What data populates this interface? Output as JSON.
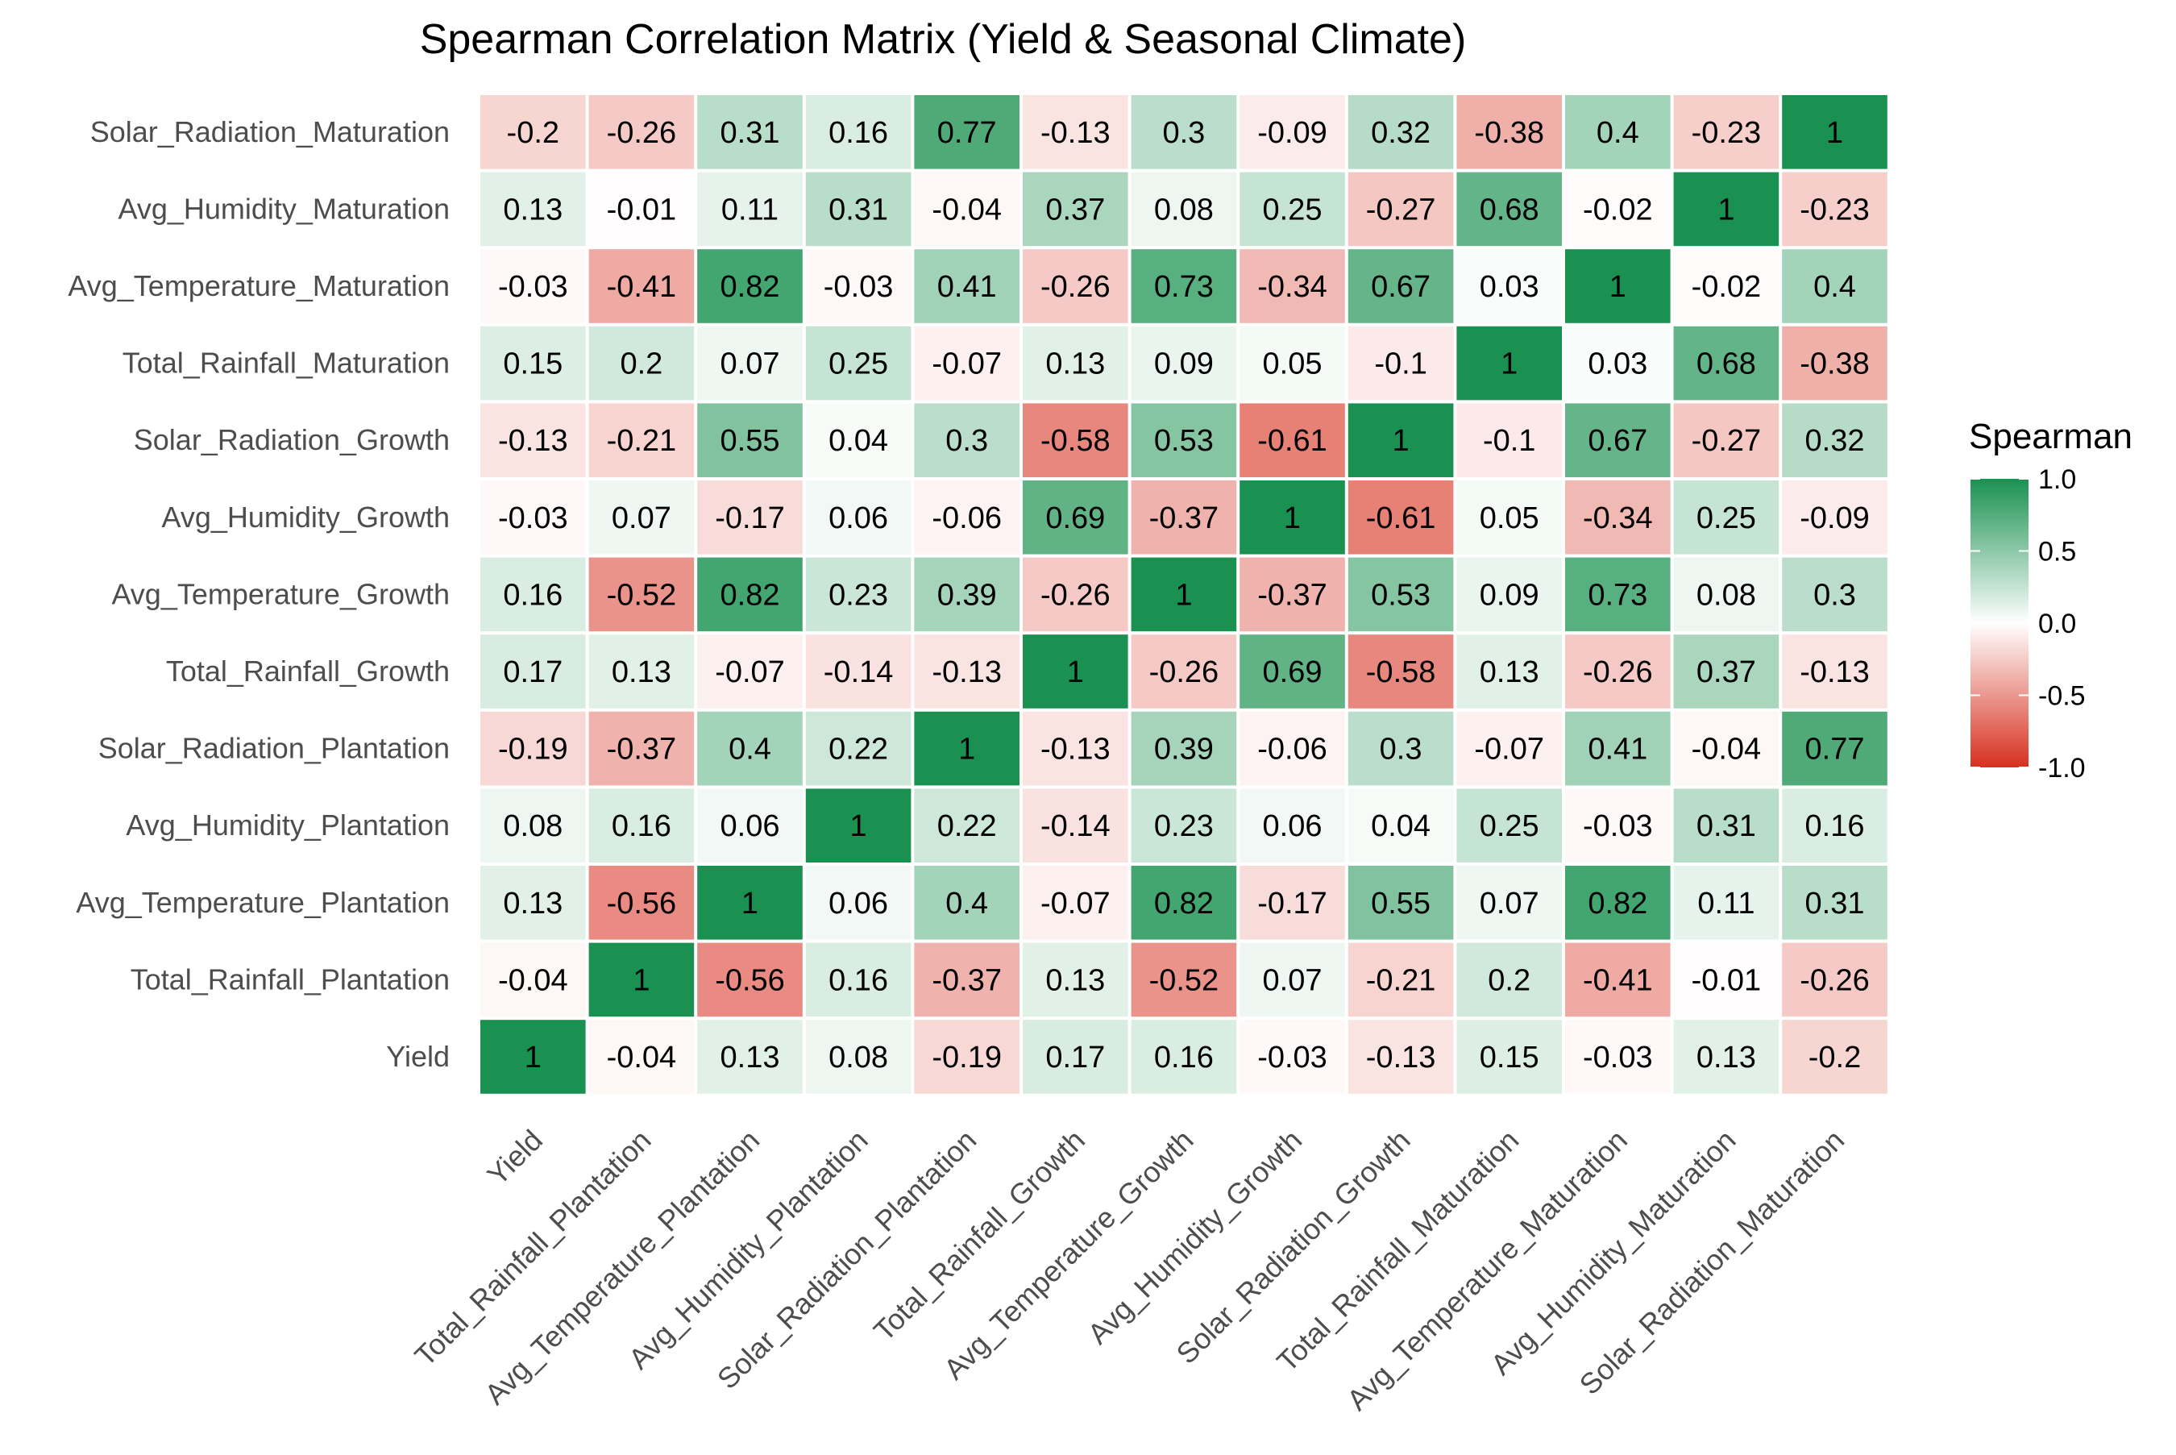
{
  "chart_data": {
    "type": "heatmap",
    "title": "Spearman Correlation Matrix (Yield & Seasonal Climate)",
    "variables": [
      "Yield",
      "Total_Rainfall_Plantation",
      "Avg_Temperature_Plantation",
      "Avg_Humidity_Plantation",
      "Solar_Radiation_Plantation",
      "Total_Rainfall_Growth",
      "Avg_Temperature_Growth",
      "Avg_Humidity_Growth",
      "Solar_Radiation_Growth",
      "Total_Rainfall_Maturation",
      "Avg_Temperature_Maturation",
      "Avg_Humidity_Maturation",
      "Solar_Radiation_Maturation"
    ],
    "matrix": [
      [
        1,
        -0.04,
        0.13,
        0.08,
        -0.19,
        0.17,
        0.16,
        -0.03,
        -0.13,
        0.15,
        -0.03,
        0.13,
        -0.2
      ],
      [
        -0.04,
        1,
        -0.56,
        0.16,
        -0.37,
        0.13,
        -0.52,
        0.07,
        -0.21,
        0.2,
        -0.41,
        -0.01,
        -0.26
      ],
      [
        0.13,
        -0.56,
        1,
        0.06,
        0.4,
        -0.07,
        0.82,
        -0.17,
        0.55,
        0.07,
        0.82,
        0.11,
        0.31
      ],
      [
        0.08,
        0.16,
        0.06,
        1,
        0.22,
        -0.14,
        0.23,
        0.06,
        0.04,
        0.25,
        -0.03,
        0.31,
        0.16
      ],
      [
        -0.19,
        -0.37,
        0.4,
        0.22,
        1,
        -0.13,
        0.39,
        -0.06,
        0.3,
        -0.07,
        0.41,
        -0.04,
        0.77
      ],
      [
        0.17,
        0.13,
        -0.07,
        -0.14,
        -0.13,
        1,
        -0.26,
        0.69,
        -0.58,
        0.13,
        -0.26,
        0.37,
        -0.13
      ],
      [
        0.16,
        -0.52,
        0.82,
        0.23,
        0.39,
        -0.26,
        1,
        -0.37,
        0.53,
        0.09,
        0.73,
        0.08,
        0.3
      ],
      [
        -0.03,
        0.07,
        -0.17,
        0.06,
        -0.06,
        0.69,
        -0.37,
        1,
        -0.61,
        0.05,
        -0.34,
        0.25,
        -0.09
      ],
      [
        -0.13,
        -0.21,
        0.55,
        0.04,
        0.3,
        -0.58,
        0.53,
        -0.61,
        1,
        -0.1,
        0.67,
        -0.27,
        0.32
      ],
      [
        0.15,
        0.2,
        0.07,
        0.25,
        -0.07,
        0.13,
        0.09,
        0.05,
        -0.1,
        1,
        0.03,
        0.68,
        -0.38
      ],
      [
        -0.03,
        -0.41,
        0.82,
        -0.03,
        0.41,
        -0.26,
        0.73,
        -0.34,
        0.67,
        0.03,
        1,
        -0.02,
        0.4
      ],
      [
        0.13,
        -0.01,
        0.11,
        0.31,
        -0.04,
        0.37,
        0.08,
        0.25,
        -0.27,
        0.68,
        -0.02,
        1,
        -0.23
      ],
      [
        -0.2,
        -0.26,
        0.31,
        0.16,
        0.77,
        -0.13,
        0.3,
        -0.09,
        0.32,
        -0.38,
        0.4,
        -0.23,
        1
      ]
    ],
    "y_order": "reversed",
    "color_scale": {
      "low": "#d7301f",
      "mid": "#ffffff",
      "high": "#1a9150",
      "limits": [
        -1,
        1
      ]
    },
    "legend": {
      "title": "Spearman",
      "ticks": [
        "1.0",
        "0.5",
        "0.0",
        "-0.5",
        "-1.0"
      ],
      "tick_values": [
        1,
        0.5,
        0,
        -0.5,
        -1
      ],
      "position": "right"
    },
    "grid": false,
    "tile_border_color": "#ffffff"
  }
}
